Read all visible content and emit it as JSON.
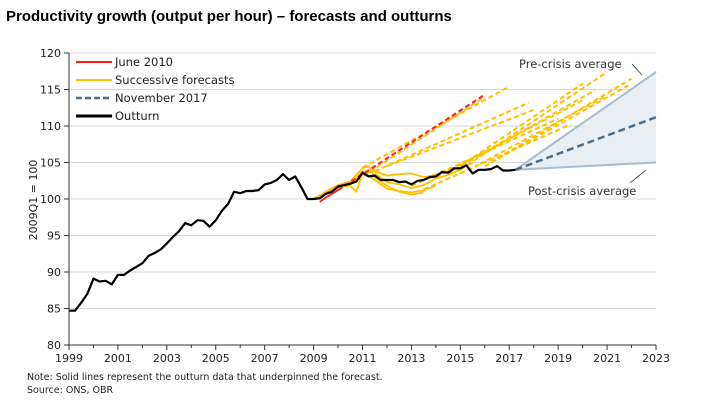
{
  "chart_data": {
    "type": "line",
    "title": "Productivity growth (output per hour) – forecasts and outturns",
    "ylabel": "2009Q1 = 100",
    "xlabel": "",
    "xlim": [
      1999,
      2023
    ],
    "ylim": [
      80,
      120
    ],
    "x_ticks": [
      "1999",
      "2001",
      "2003",
      "2005",
      "2007",
      "2009",
      "2011",
      "2013",
      "2015",
      "2017",
      "2019",
      "2021",
      "2023"
    ],
    "y_ticks": [
      "80",
      "85",
      "90",
      "95",
      "100",
      "105",
      "110",
      "115",
      "120"
    ],
    "grid": "horizontal",
    "legend_position": "top-left",
    "legend": [
      {
        "label": "June 2010",
        "color": "#ff1f1f",
        "style": "solid"
      },
      {
        "label": "Successive forecasts",
        "color": "#ffc000",
        "style": "solid"
      },
      {
        "label": "November 2017",
        "color": "#4a6f8a",
        "style": "dashed"
      },
      {
        "label": "Outturn",
        "color": "#000000",
        "style": "solid"
      }
    ],
    "colors": {
      "outturn": "#000000",
      "june2010": "#ff1f1f",
      "successive": "#ffc000",
      "nov2017": "#4a6f8a",
      "range_fill": "#e9eef2",
      "range_edge": "#a9bccb"
    },
    "outturn": {
      "x": [
        1999,
        1999.25,
        1999.5,
        1999.75,
        2000,
        2000.25,
        2000.5,
        2000.75,
        2001,
        2001.25,
        2001.5,
        2001.75,
        2002,
        2002.25,
        2002.5,
        2002.75,
        2003,
        2003.25,
        2003.5,
        2003.75,
        2004,
        2004.25,
        2004.5,
        2004.75,
        2005,
        2005.25,
        2005.5,
        2005.75,
        2006,
        2006.25,
        2006.5,
        2006.75,
        2007,
        2007.25,
        2007.5,
        2007.75,
        2008,
        2008.25,
        2008.5,
        2008.75,
        2009,
        2009.25,
        2009.5,
        2009.75,
        2010,
        2010.25,
        2010.5,
        2010.75,
        2011,
        2011.25,
        2011.5,
        2011.75,
        2012,
        2012.25,
        2012.5,
        2012.75,
        2013,
        2013.25,
        2013.5,
        2013.75,
        2014,
        2014.25,
        2014.5,
        2014.75,
        2015,
        2015.25,
        2015.5,
        2015.75,
        2016,
        2016.25,
        2016.5,
        2016.75,
        2017,
        2017.25
      ],
      "y": [
        84.7,
        84.7,
        85.8,
        87.0,
        89.1,
        88.7,
        88.8,
        88.3,
        89.6,
        89.6,
        90.2,
        90.7,
        91.2,
        92.2,
        92.6,
        93.1,
        93.9,
        94.8,
        95.6,
        96.7,
        96.4,
        97.1,
        97.0,
        96.2,
        97.1,
        98.4,
        99.3,
        101.0,
        100.8,
        101.1,
        101.1,
        101.2,
        102.0,
        102.2,
        102.6,
        103.4,
        102.6,
        103.1,
        101.6,
        100.0,
        100.0,
        100.1,
        100.7,
        101.0,
        101.7,
        101.9,
        102.1,
        102.4,
        103.6,
        103.1,
        103.2,
        102.6,
        102.6,
        102.6,
        102.3,
        102.4,
        102.0,
        102.5,
        102.6,
        103.0,
        103.1,
        103.7,
        103.6,
        104.2,
        104.2,
        104.6,
        103.5,
        104.0,
        104.0,
        104.1,
        104.5,
        103.9,
        103.9,
        104.0
      ]
    },
    "june_2010_forecast": {
      "x": [
        2009.25,
        2009.5,
        2010,
        2016
      ],
      "y": [
        99.6,
        100.2,
        101.2,
        114.3
      ]
    },
    "successive_forecasts": [
      {
        "x": [
          2010.5,
          2016.0
        ],
        "y": [
          102.0,
          114.0
        ]
      },
      {
        "x": [
          2011.0,
          2017.0
        ],
        "y": [
          104.3,
          115.4
        ]
      },
      {
        "x": [
          2011.5,
          2017.8
        ],
        "y": [
          103.8,
          113.2
        ]
      },
      {
        "x": [
          2012.0,
          2018.0
        ],
        "y": [
          104.5,
          112.2
        ]
      },
      {
        "x": [
          2013.0,
          2019.0
        ],
        "y": [
          101.8,
          111.0
        ]
      },
      {
        "x": [
          2013.5,
          2019.5
        ],
        "y": [
          101.3,
          110.2
        ]
      },
      {
        "x": [
          2014.0,
          2020.0
        ],
        "y": [
          103.0,
          113.5
        ]
      },
      {
        "x": [
          2014.5,
          2020.5
        ],
        "y": [
          103.5,
          114.9
        ]
      },
      {
        "x": [
          2015.0,
          2021.0
        ],
        "y": [
          104.0,
          117.4
        ]
      },
      {
        "x": [
          2015.0,
          2020.0
        ],
        "y": [
          104.5,
          115.8
        ]
      },
      {
        "x": [
          2015.8,
          2021.0
        ],
        "y": [
          104.8,
          114.2
        ]
      },
      {
        "x": [
          2016.0,
          2022.0
        ],
        "y": [
          104.5,
          115.8
        ]
      },
      {
        "x": [
          2016.25,
          2022.0
        ],
        "y": [
          105.0,
          116.5
        ]
      }
    ],
    "vintage_outturns": [
      {
        "x": [
          2009,
          2009.5,
          2010,
          2010.5,
          2011,
          2011.25,
          2011.5,
          2012,
          2012.5,
          2013,
          2013.5
        ],
        "y": [
          100,
          101.0,
          101.9,
          102.4,
          104.2,
          104.5,
          103.0,
          101.8,
          101.0,
          100.6,
          100.9
        ]
      },
      {
        "x": [
          2009,
          2009.5,
          2010,
          2010.5,
          2011,
          2011.5,
          2012,
          2012.5,
          2013,
          2013.5,
          2014
        ],
        "y": [
          100,
          100.6,
          101.5,
          102.0,
          103.8,
          102.6,
          101.4,
          101.1,
          100.9,
          101.2,
          101.8
        ]
      },
      {
        "x": [
          2009,
          2009.5,
          2010,
          2010.5,
          2010.75,
          2011,
          2011.5,
          2012,
          2012.5,
          2013,
          2013.5,
          2014,
          2014.5,
          2015,
          2015.5
        ],
        "y": [
          100,
          100.9,
          101.8,
          101.8,
          101.0,
          103.5,
          103.8,
          103.2,
          103.4,
          103.5,
          103.0,
          103.3,
          103.8,
          104.3,
          104.9
        ]
      },
      {
        "x": [
          2011.5,
          2012,
          2012.5,
          2013,
          2013.5,
          2014,
          2014.5,
          2015
        ],
        "y": [
          103.5,
          102.3,
          102.0,
          101.5,
          101.9,
          102.8,
          103.3,
          104.0
        ]
      }
    ],
    "november_2017_forecast": {
      "x": [
        2017.25,
        2023
      ],
      "y": [
        104.0,
        111.2
      ]
    },
    "pre_crisis_average": {
      "x": [
        2017.25,
        2023
      ],
      "y": [
        104.0,
        117.4
      ]
    },
    "post_crisis_average": {
      "x": [
        2017.25,
        2023
      ],
      "y": [
        104.0,
        105.0
      ]
    },
    "annotations": [
      "Pre-crisis average",
      "Post-crisis average"
    ],
    "note": "Note: Solid lines represent the outturn data that underpinned the forecast.",
    "source": "Source: ONS, OBR"
  }
}
